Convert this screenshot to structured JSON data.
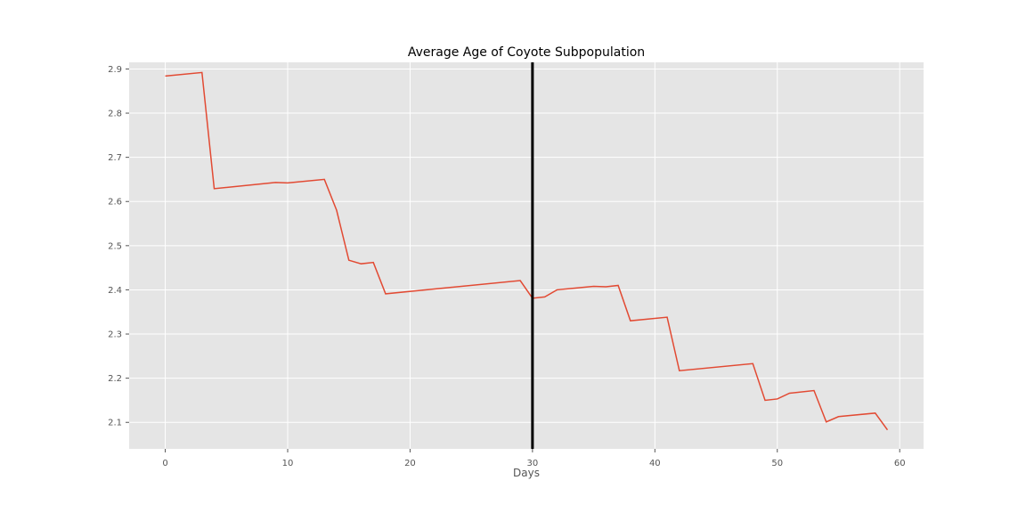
{
  "colors": {
    "plot_background": "#e5e5e5",
    "grid": "#ffffff",
    "line": "#e24a33",
    "vline": "#000000",
    "tick_text": "#555555"
  },
  "chart_data": {
    "type": "line",
    "title": "Average Age of Coyote Subpopulation",
    "xlabel": "Days",
    "ylabel": "",
    "xlim": [
      -2.95,
      61.95
    ],
    "ylim": [
      2.04,
      2.915
    ],
    "xticks": [
      0,
      10,
      20,
      30,
      40,
      50,
      60
    ],
    "yticks": [
      2.1,
      2.2,
      2.3,
      2.4,
      2.5,
      2.6,
      2.7,
      2.8,
      2.9
    ],
    "grid": true,
    "vertical_line": {
      "x": 30,
      "color": "#000000"
    },
    "series": [
      {
        "x": [
          0,
          3,
          4,
          9,
          10,
          13,
          14,
          15,
          16,
          17,
          18,
          29,
          30,
          31,
          32,
          35,
          36,
          37,
          38,
          41,
          42,
          48,
          49,
          50,
          51,
          53,
          54,
          55,
          58,
          59
        ],
        "y": [
          2.884,
          2.892,
          2.629,
          2.643,
          2.642,
          2.65,
          2.58,
          2.467,
          2.459,
          2.462,
          2.391,
          2.421,
          2.381,
          2.384,
          2.4,
          2.408,
          2.407,
          2.41,
          2.33,
          2.338,
          2.217,
          2.233,
          2.15,
          2.153,
          2.166,
          2.172,
          2.101,
          2.113,
          2.121,
          2.083
        ],
        "color": "#e24a33"
      }
    ]
  }
}
